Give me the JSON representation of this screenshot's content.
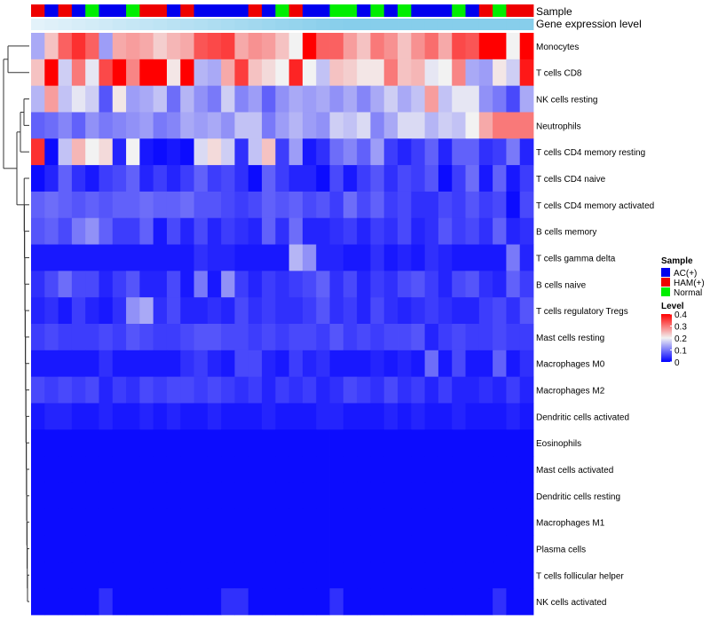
{
  "chart_data": {
    "type": "heatmap",
    "title": "",
    "annotation_tracks": [
      "Sample",
      "Gene expression level"
    ],
    "sample_groups": [
      "AC(+)",
      "HAM(+)",
      "Normal"
    ],
    "sample_group_colors": {
      "AC(+)": "#0000ee",
      "HAM(+)": "#ee0000",
      "Normal": "#00ee00"
    },
    "sample_sequence": [
      1,
      0,
      1,
      0,
      2,
      0,
      0,
      2,
      1,
      1,
      0,
      1,
      0,
      0,
      0,
      0,
      1,
      0,
      2,
      1,
      0,
      0,
      2,
      2,
      0,
      2,
      0,
      2,
      0,
      0,
      0,
      2,
      0,
      1,
      2,
      1,
      1
    ],
    "gene_expression_track_colors": [
      "#e3f2fa",
      "#87ceeb"
    ],
    "rows": [
      "Monocytes",
      "T cells CD8",
      "NK cells resting",
      "Neutrophils",
      "T cells CD4 memory resting",
      "T cells CD4 naive",
      "T cells CD4 memory activated",
      "B cells memory",
      "T cells gamma delta",
      "B cells naive",
      "T cells regulatory  Tregs",
      "Mast cells resting",
      "Macrophages M0",
      "Macrophages M2",
      "Dendritic cells activated",
      "Eosinophils",
      "Mast cells activated",
      "Dendritic cells resting",
      "Macrophages M1",
      "Plasma cells",
      "T cells follicular helper",
      "NK cells activated"
    ],
    "values": [
      [
        0.14,
        0.24,
        0.32,
        0.36,
        0.32,
        0.13,
        0.26,
        0.27,
        0.26,
        0.23,
        0.25,
        0.26,
        0.33,
        0.34,
        0.35,
        0.26,
        0.28,
        0.27,
        0.24,
        0.2,
        0.42,
        0.32,
        0.32,
        0.27,
        0.24,
        0.3,
        0.28,
        0.24,
        0.28,
        0.31,
        0.26,
        0.34,
        0.33,
        0.43,
        0.43,
        0.2,
        0.41
      ],
      [
        0.24,
        0.41,
        0.17,
        0.3,
        0.19,
        0.34,
        0.44,
        0.29,
        0.42,
        0.43,
        0.21,
        0.42,
        0.15,
        0.14,
        0.26,
        0.35,
        0.24,
        0.22,
        0.2,
        0.37,
        0.2,
        0.16,
        0.24,
        0.23,
        0.21,
        0.21,
        0.3,
        0.24,
        0.25,
        0.19,
        0.2,
        0.29,
        0.14,
        0.13,
        0.21,
        0.17,
        0.38
      ],
      [
        0.15,
        0.27,
        0.16,
        0.19,
        0.17,
        0.07,
        0.21,
        0.13,
        0.14,
        0.16,
        0.09,
        0.15,
        0.12,
        0.1,
        0.17,
        0.11,
        0.13,
        0.08,
        0.12,
        0.14,
        0.13,
        0.14,
        0.12,
        0.14,
        0.11,
        0.14,
        0.17,
        0.14,
        0.16,
        0.27,
        0.16,
        0.19,
        0.19,
        0.12,
        0.1,
        0.06,
        0.14
      ],
      [
        0.08,
        0.09,
        0.11,
        0.08,
        0.12,
        0.1,
        0.11,
        0.12,
        0.13,
        0.1,
        0.11,
        0.14,
        0.13,
        0.14,
        0.12,
        0.16,
        0.16,
        0.1,
        0.13,
        0.15,
        0.13,
        0.12,
        0.17,
        0.16,
        0.18,
        0.11,
        0.14,
        0.18,
        0.18,
        0.15,
        0.17,
        0.16,
        0.2,
        0.26,
        0.3,
        0.3,
        0.3
      ],
      [
        0.36,
        0.01,
        0.16,
        0.25,
        0.2,
        0.22,
        0.03,
        0.2,
        0.02,
        0.01,
        0.02,
        0.01,
        0.18,
        0.22,
        0.17,
        0.04,
        0.16,
        0.24,
        0.05,
        0.13,
        0.02,
        0.04,
        0.09,
        0.11,
        0.08,
        0.13,
        0.05,
        0.03,
        0.05,
        0.08,
        0.03,
        0.08,
        0.08,
        0.04,
        0.05,
        0.1,
        0.03
      ],
      [
        0.01,
        0.03,
        0.08,
        0.04,
        0.02,
        0.05,
        0.06,
        0.08,
        0.03,
        0.05,
        0.03,
        0.05,
        0.08,
        0.05,
        0.06,
        0.04,
        0.01,
        0.08,
        0.05,
        0.03,
        0.03,
        0.01,
        0.06,
        0.02,
        0.05,
        0.07,
        0.04,
        0.06,
        0.05,
        0.07,
        0.01,
        0.05,
        0.09,
        0.02,
        0.08,
        0.02,
        0.05
      ],
      [
        0.08,
        0.09,
        0.08,
        0.07,
        0.08,
        0.07,
        0.08,
        0.08,
        0.09,
        0.08,
        0.08,
        0.09,
        0.07,
        0.07,
        0.06,
        0.05,
        0.06,
        0.08,
        0.07,
        0.08,
        0.06,
        0.07,
        0.05,
        0.09,
        0.06,
        0.08,
        0.05,
        0.06,
        0.04,
        0.04,
        0.06,
        0.05,
        0.07,
        0.05,
        0.06,
        0.01,
        0.06
      ],
      [
        0.07,
        0.08,
        0.06,
        0.1,
        0.12,
        0.08,
        0.05,
        0.05,
        0.08,
        0.02,
        0.06,
        0.03,
        0.06,
        0.03,
        0.05,
        0.04,
        0.03,
        0.08,
        0.04,
        0.09,
        0.03,
        0.03,
        0.04,
        0.05,
        0.03,
        0.05,
        0.04,
        0.06,
        0.03,
        0.04,
        0.07,
        0.05,
        0.06,
        0.04,
        0.08,
        0.03,
        0.04
      ],
      [
        0.02,
        0.02,
        0.02,
        0.02,
        0.02,
        0.02,
        0.02,
        0.02,
        0.02,
        0.02,
        0.02,
        0.02,
        0.04,
        0.03,
        0.03,
        0.02,
        0.02,
        0.02,
        0.02,
        0.15,
        0.12,
        0.03,
        0.03,
        0.02,
        0.02,
        0.04,
        0.02,
        0.03,
        0.02,
        0.04,
        0.03,
        0.02,
        0.02,
        0.02,
        0.02,
        0.1,
        0.03
      ],
      [
        0.04,
        0.06,
        0.09,
        0.06,
        0.06,
        0.03,
        0.05,
        0.07,
        0.03,
        0.03,
        0.06,
        0.02,
        0.1,
        0.02,
        0.12,
        0.05,
        0.03,
        0.05,
        0.04,
        0.05,
        0.06,
        0.08,
        0.04,
        0.06,
        0.03,
        0.05,
        0.04,
        0.06,
        0.07,
        0.05,
        0.03,
        0.06,
        0.07,
        0.04,
        0.03,
        0.08,
        0.05
      ],
      [
        0.03,
        0.04,
        0.02,
        0.05,
        0.03,
        0.02,
        0.04,
        0.12,
        0.14,
        0.04,
        0.06,
        0.03,
        0.03,
        0.04,
        0.03,
        0.06,
        0.04,
        0.05,
        0.04,
        0.04,
        0.05,
        0.07,
        0.04,
        0.05,
        0.03,
        0.06,
        0.04,
        0.03,
        0.04,
        0.05,
        0.04,
        0.03,
        0.03,
        0.05,
        0.06,
        0.04,
        0.07
      ],
      [
        0.05,
        0.06,
        0.05,
        0.05,
        0.05,
        0.06,
        0.05,
        0.07,
        0.06,
        0.05,
        0.05,
        0.06,
        0.07,
        0.07,
        0.06,
        0.06,
        0.05,
        0.06,
        0.05,
        0.06,
        0.06,
        0.05,
        0.07,
        0.05,
        0.06,
        0.05,
        0.06,
        0.06,
        0.07,
        0.03,
        0.05,
        0.06,
        0.05,
        0.05,
        0.06,
        0.05,
        0.05
      ],
      [
        0.02,
        0.02,
        0.02,
        0.02,
        0.02,
        0.04,
        0.02,
        0.02,
        0.02,
        0.02,
        0.02,
        0.04,
        0.05,
        0.03,
        0.02,
        0.06,
        0.06,
        0.03,
        0.02,
        0.05,
        0.03,
        0.04,
        0.02,
        0.02,
        0.02,
        0.03,
        0.02,
        0.03,
        0.02,
        0.09,
        0.02,
        0.06,
        0.02,
        0.02,
        0.08,
        0.02,
        0.04
      ],
      [
        0.06,
        0.05,
        0.06,
        0.05,
        0.06,
        0.03,
        0.05,
        0.04,
        0.06,
        0.05,
        0.06,
        0.06,
        0.05,
        0.06,
        0.05,
        0.04,
        0.05,
        0.03,
        0.05,
        0.04,
        0.05,
        0.03,
        0.04,
        0.06,
        0.05,
        0.04,
        0.06,
        0.04,
        0.05,
        0.03,
        0.05,
        0.03,
        0.03,
        0.04,
        0.03,
        0.05,
        0.03
      ],
      [
        0.02,
        0.03,
        0.03,
        0.02,
        0.02,
        0.03,
        0.02,
        0.02,
        0.03,
        0.02,
        0.03,
        0.02,
        0.02,
        0.03,
        0.02,
        0.02,
        0.02,
        0.03,
        0.02,
        0.02,
        0.02,
        0.03,
        0.03,
        0.02,
        0.02,
        0.02,
        0.03,
        0.02,
        0.03,
        0.02,
        0.02,
        0.03,
        0.02,
        0.02,
        0.02,
        0.03,
        0.02
      ],
      [
        0.01,
        0.01,
        0.01,
        0.01,
        0.01,
        0.01,
        0.01,
        0.01,
        0.01,
        0.01,
        0.01,
        0.01,
        0.01,
        0.01,
        0.01,
        0.01,
        0.01,
        0.01,
        0.01,
        0.01,
        0.01,
        0.01,
        0.01,
        0.01,
        0.01,
        0.01,
        0.01,
        0.01,
        0.01,
        0.01,
        0.01,
        0.01,
        0.01,
        0.01,
        0.01,
        0.01,
        0.01
      ],
      [
        0.01,
        0.01,
        0.01,
        0.01,
        0.01,
        0.01,
        0.01,
        0.01,
        0.01,
        0.01,
        0.01,
        0.01,
        0.01,
        0.01,
        0.01,
        0.01,
        0.01,
        0.01,
        0.01,
        0.01,
        0.01,
        0.01,
        0.01,
        0.01,
        0.01,
        0.01,
        0.01,
        0.01,
        0.01,
        0.01,
        0.01,
        0.01,
        0.01,
        0.01,
        0.01,
        0.01,
        0.01
      ],
      [
        0.01,
        0.01,
        0.01,
        0.01,
        0.01,
        0.01,
        0.01,
        0.01,
        0.01,
        0.01,
        0.01,
        0.01,
        0.01,
        0.01,
        0.01,
        0.01,
        0.01,
        0.01,
        0.01,
        0.01,
        0.01,
        0.01,
        0.01,
        0.01,
        0.01,
        0.01,
        0.01,
        0.01,
        0.01,
        0.01,
        0.01,
        0.01,
        0.01,
        0.01,
        0.01,
        0.01,
        0.01
      ],
      [
        0.01,
        0.01,
        0.01,
        0.01,
        0.01,
        0.01,
        0.01,
        0.01,
        0.01,
        0.01,
        0.01,
        0.01,
        0.01,
        0.01,
        0.01,
        0.01,
        0.01,
        0.01,
        0.01,
        0.01,
        0.01,
        0.01,
        0.01,
        0.01,
        0.01,
        0.01,
        0.01,
        0.01,
        0.01,
        0.01,
        0.01,
        0.01,
        0.01,
        0.01,
        0.01,
        0.01,
        0.01
      ],
      [
        0.01,
        0.01,
        0.01,
        0.01,
        0.01,
        0.01,
        0.01,
        0.01,
        0.01,
        0.01,
        0.01,
        0.01,
        0.01,
        0.01,
        0.01,
        0.01,
        0.01,
        0.01,
        0.01,
        0.01,
        0.01,
        0.01,
        0.01,
        0.01,
        0.01,
        0.01,
        0.01,
        0.01,
        0.01,
        0.01,
        0.01,
        0.01,
        0.01,
        0.01,
        0.01,
        0.01,
        0.01
      ],
      [
        0.01,
        0.01,
        0.01,
        0.01,
        0.01,
        0.01,
        0.01,
        0.01,
        0.01,
        0.01,
        0.01,
        0.01,
        0.01,
        0.01,
        0.01,
        0.01,
        0.01,
        0.01,
        0.01,
        0.01,
        0.01,
        0.01,
        0.01,
        0.01,
        0.01,
        0.01,
        0.01,
        0.01,
        0.01,
        0.01,
        0.01,
        0.01,
        0.01,
        0.01,
        0.01,
        0.01,
        0.01
      ],
      [
        0.01,
        0.01,
        0.01,
        0.01,
        0.01,
        0.04,
        0.01,
        0.01,
        0.01,
        0.01,
        0.01,
        0.01,
        0.01,
        0.01,
        0.04,
        0.04,
        0.01,
        0.01,
        0.01,
        0.01,
        0.01,
        0.01,
        0.04,
        0.01,
        0.01,
        0.01,
        0.01,
        0.01,
        0.01,
        0.01,
        0.01,
        0.01,
        0.01,
        0.01,
        0.04,
        0.01,
        0.01
      ]
    ],
    "color_scale": {
      "low": "#0000ff",
      "mid": "#f2f2f2",
      "high": "#ff0000",
      "range": [
        0,
        0.4
      ]
    },
    "legend": {
      "sample_title": "Sample",
      "level_title": "Level",
      "level_ticks": [
        "0.4",
        "0.3",
        "0.2",
        "0.1",
        "0"
      ],
      "position": "right"
    },
    "dendrogram": "rows"
  }
}
